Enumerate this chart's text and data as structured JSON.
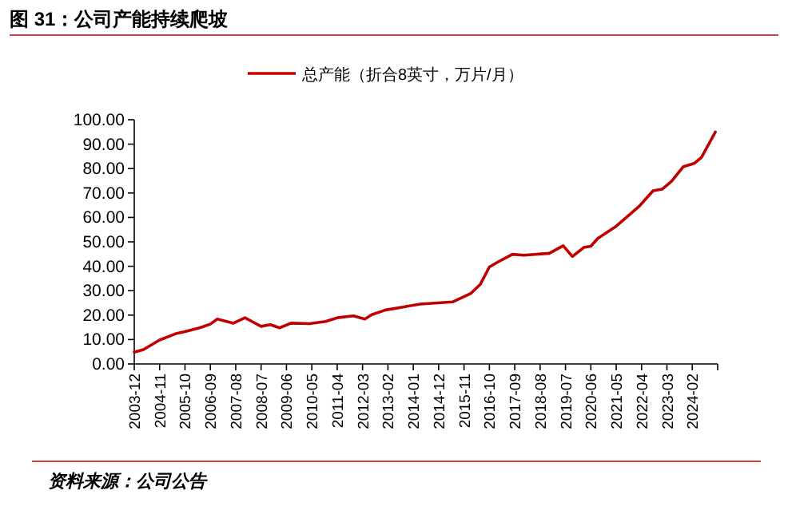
{
  "chart_data": {
    "type": "line",
    "title": "图 31：公司产能持续爬坡",
    "annotations": [
      "资料来源：公司公告"
    ],
    "legend": "top",
    "grid": false,
    "marker": "none",
    "line_style": "solid",
    "xlim": [
      "2003-12",
      "2025-01"
    ],
    "xticks": [
      "2003-12",
      "2004-11",
      "2005-10",
      "2006-09",
      "2007-08",
      "2008-07",
      "2009-06",
      "2010-05",
      "2011-04",
      "2012-03",
      "2013-02",
      "2014-01",
      "2014-12",
      "2015-11",
      "2016-10",
      "2017-09",
      "2018-08",
      "2019-07",
      "2020-06",
      "2021-05",
      "2022-04",
      "2023-03",
      "2024-02"
    ],
    "ylim": [
      0,
      100
    ],
    "yticks": [
      {
        "value": 0,
        "label": "0.00"
      },
      {
        "value": 10,
        "label": "10.00"
      },
      {
        "value": 20,
        "label": "20.00"
      },
      {
        "value": 30,
        "label": "30.00"
      },
      {
        "value": 40,
        "label": "40.00"
      },
      {
        "value": 50,
        "label": "50.00"
      },
      {
        "value": 60,
        "label": "60.00"
      },
      {
        "value": 70,
        "label": "70.00"
      },
      {
        "value": 80,
        "label": "80.00"
      },
      {
        "value": 90,
        "label": "90.00"
      },
      {
        "value": 100,
        "label": "100.00"
      }
    ],
    "x": [
      "2003-12",
      "2004-04",
      "2004-11",
      "2005-06",
      "2005-10",
      "2006-04",
      "2006-09",
      "2006-12",
      "2007-07",
      "2007-12",
      "2008-03",
      "2008-07",
      "2008-11",
      "2009-03",
      "2009-08",
      "2010-04",
      "2010-11",
      "2011-04",
      "2011-11",
      "2012-04",
      "2012-07",
      "2013-01",
      "2013-09",
      "2014-04",
      "2015-06",
      "2016-02",
      "2016-06",
      "2016-10",
      "2017-02",
      "2017-08",
      "2018-01",
      "2018-12",
      "2019-06",
      "2019-10",
      "2020-03",
      "2020-06",
      "2020-09",
      "2021-05",
      "2022-03",
      "2022-09",
      "2023-01",
      "2023-05",
      "2023-10",
      "2024-03",
      "2024-06",
      "2024-12"
    ],
    "series": [
      {
        "name": "总产能（折合8英寸，万片/月）",
        "color": "#c00000",
        "values": [
          4.8,
          5.9,
          9.8,
          12.4,
          13.2,
          14.7,
          16.3,
          18.4,
          16.7,
          18.9,
          17.4,
          15.4,
          16.1,
          14.8,
          16.7,
          16.5,
          17.4,
          18.9,
          19.7,
          18.4,
          20.2,
          22.1,
          23.4,
          24.5,
          25.4,
          28.9,
          32.5,
          39.7,
          41.9,
          44.9,
          44.5,
          45.3,
          48.4,
          44.0,
          47.7,
          48.2,
          51.4,
          56.4,
          64.6,
          70.9,
          71.6,
          74.8,
          80.7,
          82.2,
          84.6,
          95.0
        ]
      }
    ]
  }
}
